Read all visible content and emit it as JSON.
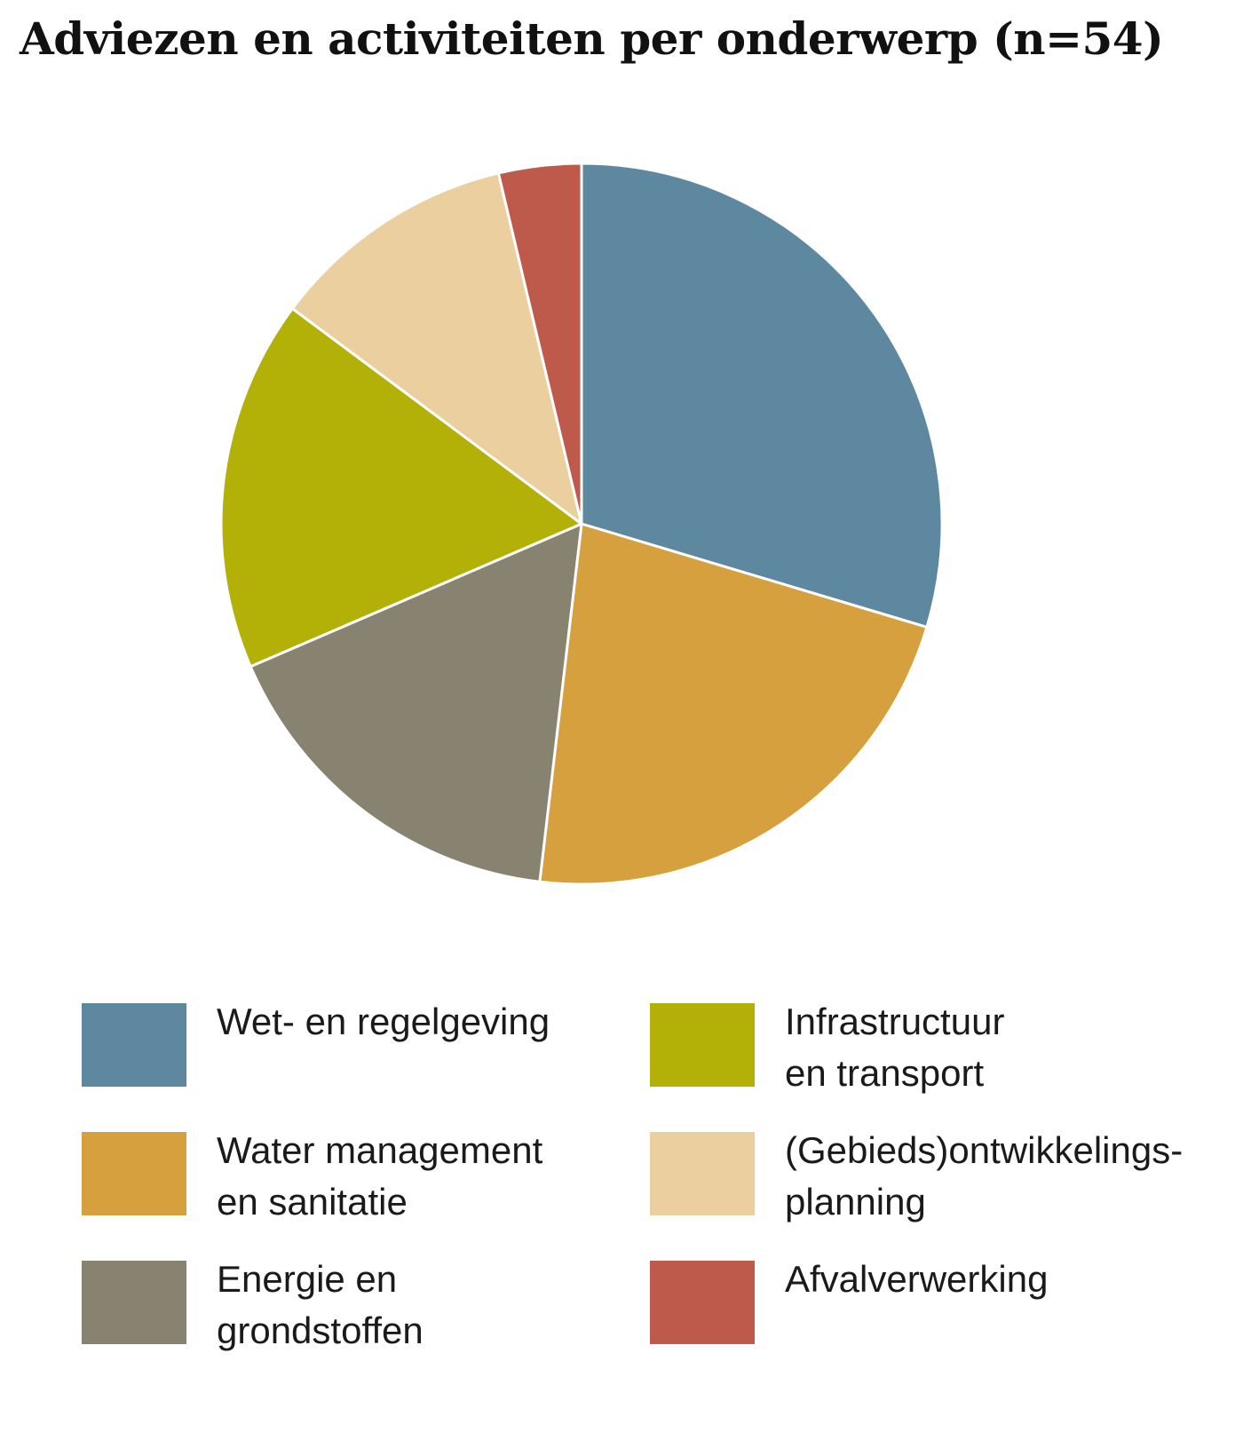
{
  "chart_data": {
    "type": "pie",
    "title": "Adviezen en activiteiten per onderwerp (n=54)",
    "total": 54,
    "slices": [
      {
        "label": "Wet- en regelgeving",
        "value": 16,
        "color": "#5e889f"
      },
      {
        "label": "Water management en sanitatie",
        "value": 12,
        "color": "#d5a03d"
      },
      {
        "label": "Energie en grondstoffen",
        "value": 9,
        "color": "#888370"
      },
      {
        "label": "Infrastructuur en transport",
        "value": 9,
        "color": "#b3b108"
      },
      {
        "label": "(Gebieds)ontwikkelings-planning",
        "value": 6,
        "color": "#eccf9f"
      },
      {
        "label": "Afvalverwerking",
        "value": 2,
        "color": "#bd5a4b"
      }
    ],
    "start_angle": "12 o'clock",
    "direction": "clockwise",
    "legend_placement": "bottom"
  },
  "legend": {
    "items": [
      {
        "text": "Wet- en regelgeving",
        "color": "#5e889f"
      },
      {
        "text": "Water management\nen sanitatie",
        "color": "#d5a03d"
      },
      {
        "text": "Energie en\ngrondstoffen",
        "color": "#888370"
      },
      {
        "text": "Infrastructuur\nen transport",
        "color": "#b3b108"
      },
      {
        "text": "(Gebieds)ontwikkelings-\nplanning",
        "color": "#eccf9f"
      },
      {
        "text": "Afvalverwerking",
        "color": "#bd5a4b"
      }
    ]
  }
}
